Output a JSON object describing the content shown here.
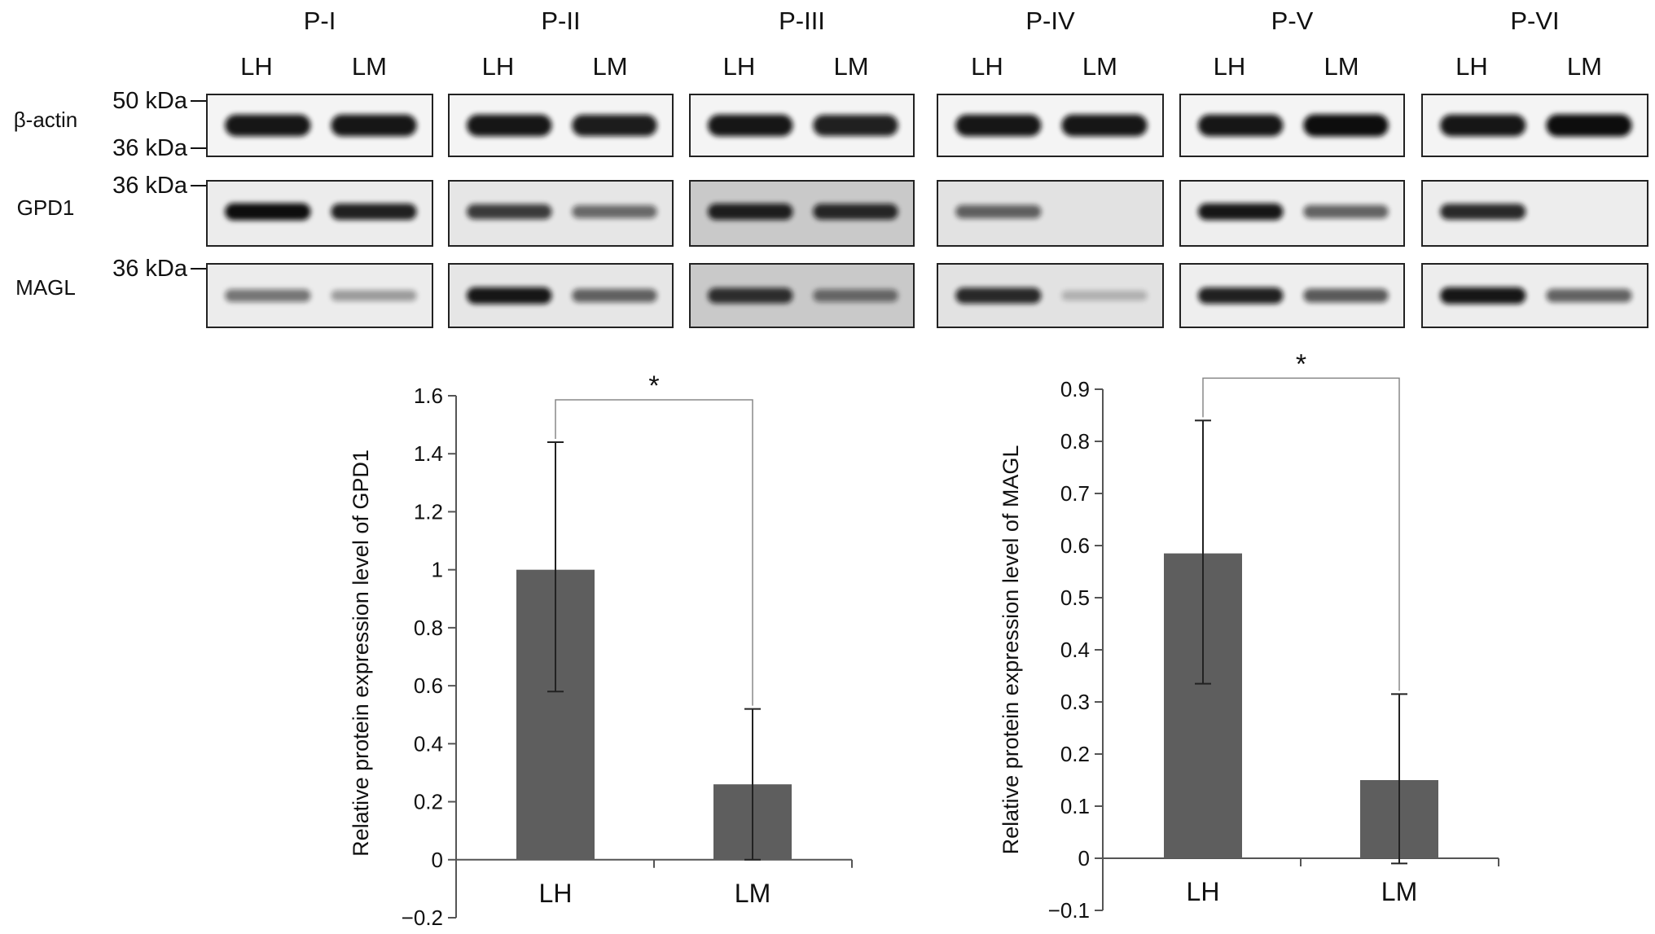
{
  "blot": {
    "patients": [
      "P-I",
      "P-II",
      "P-III",
      "P-IV",
      "P-V",
      "P-VI"
    ],
    "lanes": [
      "LH",
      "LM"
    ],
    "rows": [
      {
        "label": "β-actin",
        "markers": [
          "50 kDa",
          "36 kDa"
        ],
        "band_intensity": [
          [
            0.95,
            0.95
          ],
          [
            0.95,
            0.92
          ],
          [
            0.95,
            0.9
          ],
          [
            0.95,
            0.95
          ],
          [
            0.95,
            1.0
          ],
          [
            0.95,
            1.0
          ]
        ]
      },
      {
        "label": "GPD1",
        "markers": [
          "36 kDa"
        ],
        "band_intensity": [
          [
            1.0,
            0.9
          ],
          [
            0.75,
            0.5
          ],
          [
            0.9,
            0.85
          ],
          [
            0.55,
            0.0
          ],
          [
            0.95,
            0.55
          ],
          [
            0.85,
            0.0
          ]
        ]
      },
      {
        "label": "MAGL",
        "markers": [
          "36 kDa"
        ],
        "band_intensity": [
          [
            0.45,
            0.25
          ],
          [
            0.95,
            0.55
          ],
          [
            0.8,
            0.45
          ],
          [
            0.85,
            0.1
          ],
          [
            0.9,
            0.6
          ],
          [
            0.95,
            0.55
          ]
        ]
      }
    ],
    "background_tone": [
      "#ececec",
      "#e6e6e6",
      "#c9c9c9",
      "#e2e2e2",
      "#eeeeee",
      "#ededed"
    ]
  },
  "chart_data": [
    {
      "type": "bar",
      "categories": [
        "LH",
        "LM"
      ],
      "values": [
        1.0,
        0.26
      ],
      "error_low": [
        0.58,
        0.0
      ],
      "error_high": [
        1.44,
        0.52
      ],
      "ylabel": "Relative protein expression level of GPD1",
      "ylim": [
        -0.2,
        1.6
      ],
      "yticks": [
        "−0.2",
        "0",
        "0.2",
        "0.4",
        "0.6",
        "0.8",
        "1",
        "1.2",
        "1.4",
        "1.6"
      ],
      "significance": "*",
      "bar_color": "#5e5e5e"
    },
    {
      "type": "bar",
      "categories": [
        "LH",
        "LM"
      ],
      "values": [
        0.585,
        0.15
      ],
      "error_low": [
        0.335,
        -0.01
      ],
      "error_high": [
        0.84,
        0.315
      ],
      "ylabel": "Relative protein expression level of MAGL",
      "ylim": [
        -0.1,
        0.9
      ],
      "yticks": [
        "−0.1",
        "0",
        "0.1",
        "0.2",
        "0.3",
        "0.4",
        "0.5",
        "0.6",
        "0.7",
        "0.8",
        "0.9"
      ],
      "significance": "*",
      "bar_color": "#5e5e5e"
    }
  ]
}
